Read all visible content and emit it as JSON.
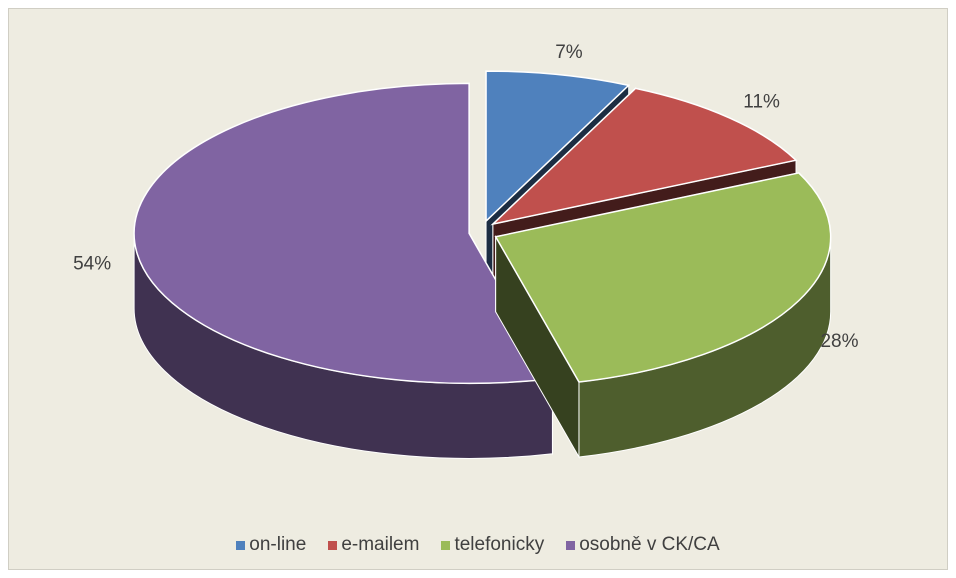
{
  "chart_data": {
    "type": "pie",
    "categories": [
      "on-line",
      "e-mailem",
      "telefonicky",
      "osobně v CK/CA"
    ],
    "values": [
      7,
      11,
      28,
      54
    ],
    "value_labels": [
      "7%",
      "11%",
      "28%",
      "54%"
    ],
    "colors": [
      "#4f81bd",
      "#c0504d",
      "#9bbb59",
      "#8064a2"
    ],
    "legend": "bottom"
  }
}
